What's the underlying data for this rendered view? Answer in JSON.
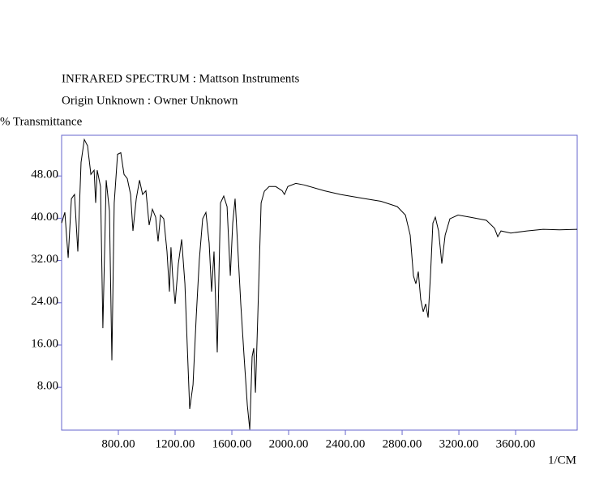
{
  "chart_data": {
    "type": "line",
    "title": "INFRARED SPECTRUM : Mattson Instruments",
    "subtitle": "Origin Unknown : Owner Unknown",
    "y_label": "% Transmittance",
    "x_label": "1/CM",
    "x": [
      400,
      423,
      446,
      469,
      491,
      514,
      537,
      560,
      583,
      606,
      629,
      640,
      651,
      674,
      691,
      714,
      737,
      754,
      771,
      794,
      817,
      840,
      863,
      886,
      903,
      926,
      949,
      971,
      994,
      1017,
      1040,
      1063,
      1080,
      1097,
      1120,
      1143,
      1160,
      1171,
      1183,
      1200,
      1223,
      1246,
      1269,
      1286,
      1303,
      1326,
      1349,
      1371,
      1394,
      1417,
      1440,
      1457,
      1474,
      1497,
      1520,
      1543,
      1566,
      1589,
      1606,
      1623,
      1640,
      1663,
      1686,
      1709,
      1726,
      1743,
      1754,
      1766,
      1783,
      1806,
      1829,
      1863,
      1909,
      1954,
      1971,
      1994,
      2051,
      2109,
      2251,
      2366,
      2537,
      2651,
      2766,
      2823,
      2857,
      2880,
      2897,
      2914,
      2931,
      2949,
      2966,
      2983,
      3000,
      3017,
      3034,
      3057,
      3080,
      3103,
      3137,
      3194,
      3280,
      3394,
      3451,
      3474,
      3497,
      3566,
      3680,
      3794,
      3909,
      4034
    ],
    "series": [
      {
        "color": "#000000",
        "values": [
          39.1,
          41.1,
          32.5,
          43.7,
          44.5,
          33.7,
          50.6,
          54.9,
          53.7,
          48.3,
          49.1,
          42.9,
          49.1,
          46.0,
          19.2,
          47.2,
          41.4,
          13.1,
          42.9,
          52.1,
          52.4,
          48.3,
          47.5,
          44.5,
          37.6,
          43.7,
          47.2,
          44.5,
          45.2,
          38.7,
          41.7,
          40.2,
          35.6,
          40.6,
          39.9,
          33.7,
          26.1,
          34.5,
          29.1,
          23.8,
          31.4,
          36.0,
          27.6,
          15.4,
          3.9,
          8.5,
          21.5,
          32.2,
          39.9,
          41.1,
          35.3,
          26.1,
          33.7,
          14.6,
          42.9,
          44.2,
          42.2,
          29.1,
          39.1,
          43.7,
          35.3,
          23.8,
          13.8,
          4.6,
          0.0,
          13.8,
          15.4,
          7.0,
          21.5,
          42.9,
          45.1,
          46.0,
          46.0,
          45.2,
          44.5,
          46.0,
          46.6,
          46.3,
          45.2,
          44.5,
          43.7,
          43.2,
          42.2,
          40.6,
          36.8,
          29.1,
          27.6,
          29.9,
          24.6,
          22.3,
          23.8,
          21.2,
          29.1,
          39.1,
          40.2,
          37.6,
          31.4,
          36.8,
          39.9,
          40.6,
          40.2,
          39.6,
          38.1,
          36.5,
          37.6,
          37.2,
          37.6,
          37.9,
          37.8,
          37.9
        ]
      }
    ],
    "xlim": [
      400,
      4034
    ],
    "ylim": [
      -0.1,
      55.7
    ],
    "xticks": [
      {
        "value": 800,
        "label": "800.00"
      },
      {
        "value": 1200,
        "label": "1200.00"
      },
      {
        "value": 1600,
        "label": "1600.00"
      },
      {
        "value": 2000,
        "label": "2000.00"
      },
      {
        "value": 2400,
        "label": "2400.00"
      },
      {
        "value": 2800,
        "label": "2800.00"
      },
      {
        "value": 3200,
        "label": "3200.00"
      },
      {
        "value": 3600,
        "label": "3600.00"
      }
    ],
    "yticks": [
      {
        "value": 8,
        "label": "8.00"
      },
      {
        "value": 16,
        "label": "16.00"
      },
      {
        "value": 24,
        "label": "24.00"
      },
      {
        "value": 32,
        "label": "32.00"
      },
      {
        "value": 40,
        "label": "40.00"
      },
      {
        "value": 48,
        "label": "48.00"
      }
    ],
    "tick_color": "#c00000",
    "frame_color": "#6666cc"
  }
}
